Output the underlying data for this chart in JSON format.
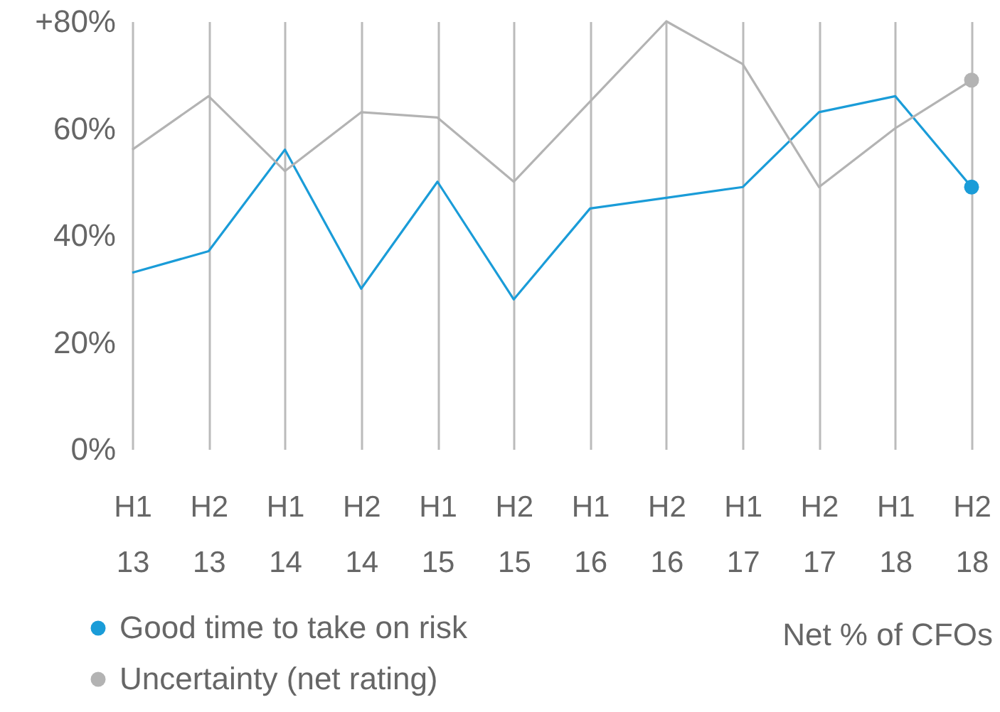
{
  "chart_data": {
    "type": "line",
    "categories": [
      "H1 13",
      "H2 13",
      "H1 14",
      "H2 14",
      "H1 15",
      "H2 15",
      "H1 16",
      "H2 16",
      "H1 17",
      "H2 17",
      "H1 18",
      "H2 18"
    ],
    "series": [
      {
        "name": "Good time to take on risk",
        "color": "#1a9cd8",
        "values": [
          33,
          37,
          56,
          30,
          50,
          28,
          45,
          47,
          49,
          63,
          66,
          49
        ]
      },
      {
        "name": "Uncertainty (net rating)",
        "color": "#b3b3b3",
        "values": [
          56,
          66,
          52,
          63,
          62,
          50,
          65,
          80,
          72,
          49,
          60,
          69
        ]
      }
    ],
    "ylim": [
      0,
      80
    ],
    "yticks": [
      {
        "value": 0,
        "label": "0%"
      },
      {
        "value": 20,
        "label": "20%"
      },
      {
        "value": 40,
        "label": "40%"
      },
      {
        "value": 60,
        "label": "60%"
      },
      {
        "value": 80,
        "label": "+80%"
      }
    ],
    "grid": "x",
    "legend": "bottom left",
    "annotations": [
      "Net % of CFOs"
    ]
  }
}
